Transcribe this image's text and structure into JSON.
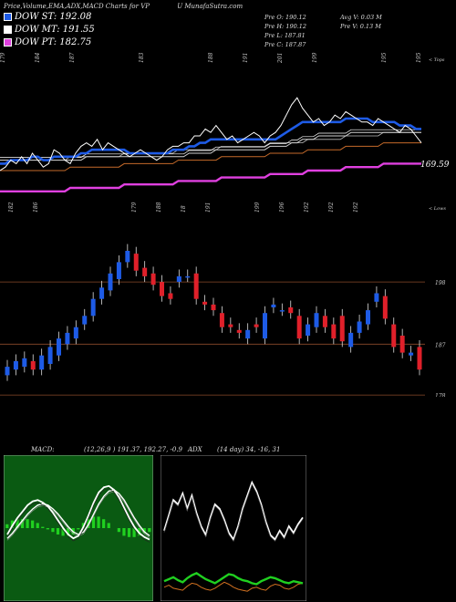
{
  "header": {
    "title": "Price,Volume,EMA,ADX,MACD Charts for VP",
    "site": "U  MunafaSutra.com"
  },
  "legend": [
    {
      "label": "DOW ST: 192.08",
      "color": "#1e5be6"
    },
    {
      "label": "DOW MT: 191.55",
      "color": "#ffffff"
    },
    {
      "label": "DOW PT: 182.75",
      "color": "#e040e0"
    }
  ],
  "stats": {
    "line1": "Pre   O: 190.12",
    "line2": "Pre   H: 190.12",
    "line3": "Pre   L: 187.81",
    "line4": "Pre   C: 187.87",
    "avg_vol": "Avg V: 0.03 M",
    "pre_vol": "Pre   V: 0.13 M"
  },
  "labels": {
    "tops": "< Tops",
    "lows": "< Lows",
    "ema_last": "169.59",
    "macd_title": "MACD:",
    "macd_values": "(12,26,9 ) 191.37,  192.27,  -0.9",
    "adx_title": "ADX",
    "adx_values": "(14  day) 34,  -16,  31"
  },
  "top_labels": [
    "179",
    "184",
    "187",
    "",
    "183",
    "",
    "188",
    "191",
    "201",
    "199",
    "",
    "195",
    "195"
  ],
  "bottom_labels": [
    "182",
    "186",
    "",
    "",
    "",
    "179",
    "188",
    "18",
    "191",
    "",
    "199",
    "196",
    "192",
    "192",
    "192"
  ],
  "colors": {
    "up": "#1e5be6",
    "down": "#e0202a",
    "ema_fast": "#1e5be6",
    "ema_pt": "#e040e0",
    "macd_bg": "#0a5a12",
    "macd_hist": "#20d020",
    "adx_plus": "#20d020",
    "adx_minus": "#d07020"
  },
  "chart_data": [
    {
      "type": "line",
      "name": "price-ema-panel",
      "series": [
        {
          "name": "Price",
          "values": [
            180,
            181,
            183,
            182,
            184,
            182,
            185,
            183,
            181,
            182,
            186,
            185,
            183,
            182,
            185,
            187,
            188,
            187,
            189,
            186,
            188,
            187,
            186,
            185,
            184,
            185,
            186,
            185,
            184,
            183,
            184,
            186,
            187,
            187,
            188,
            188,
            190,
            190,
            192,
            191,
            193,
            191,
            189,
            190,
            188,
            189,
            190,
            191,
            190,
            188,
            190,
            191,
            193,
            196,
            199,
            201,
            198,
            196,
            194,
            195,
            193,
            194,
            196,
            195,
            197,
            196,
            195,
            194,
            194,
            193,
            195,
            194,
            193,
            192,
            191,
            193,
            192,
            190,
            188
          ]
        },
        {
          "name": "DOW ST",
          "values": [
            182,
            182,
            183,
            183,
            183,
            183,
            184,
            184,
            183,
            183,
            184,
            184,
            184,
            184,
            184,
            185,
            185,
            186,
            186,
            186,
            186,
            186,
            186,
            186,
            185,
            185,
            185,
            185,
            185,
            185,
            185,
            185,
            186,
            186,
            186,
            187,
            187,
            188,
            188,
            189,
            189,
            189,
            189,
            189,
            189,
            189,
            189,
            189,
            189,
            189,
            189,
            189,
            190,
            191,
            192,
            193,
            194,
            194,
            194,
            194,
            194,
            194,
            194,
            194,
            195,
            195,
            195,
            195,
            195,
            194,
            194,
            194,
            194,
            194,
            193,
            193,
            193,
            192,
            192
          ]
        },
        {
          "name": "DOW MT",
          "values": [
            183,
            183,
            183,
            183,
            183,
            183,
            183,
            183,
            183,
            183,
            183,
            183,
            183,
            183,
            183,
            183,
            184,
            184,
            184,
            184,
            184,
            184,
            184,
            184,
            184,
            184,
            184,
            184,
            184,
            184,
            184,
            184,
            184,
            184,
            184,
            185,
            185,
            185,
            185,
            185,
            186,
            186,
            186,
            186,
            186,
            186,
            186,
            186,
            186,
            186,
            187,
            187,
            187,
            187,
            188,
            188,
            189,
            189,
            189,
            190,
            190,
            190,
            190,
            190,
            190,
            191,
            191,
            191,
            191,
            191,
            191,
            191,
            191,
            191,
            191,
            191,
            191,
            191,
            191
          ]
        },
        {
          "name": "DOW PT",
          "values": [
            174,
            174,
            174,
            174,
            174,
            174,
            174,
            174,
            174,
            174,
            174,
            174,
            174,
            175,
            175,
            175,
            175,
            175,
            175,
            175,
            175,
            175,
            175,
            176,
            176,
            176,
            176,
            176,
            176,
            176,
            176,
            176,
            176,
            177,
            177,
            177,
            177,
            177,
            177,
            177,
            177,
            178,
            178,
            178,
            178,
            178,
            178,
            178,
            178,
            178,
            179,
            179,
            179,
            179,
            179,
            179,
            179,
            180,
            180,
            180,
            180,
            180,
            180,
            180,
            181,
            181,
            181,
            181,
            181,
            181,
            181,
            182,
            182,
            182,
            182,
            182,
            182,
            182,
            182
          ]
        }
      ],
      "tick_labels_top": [
        "179",
        "184",
        "187",
        "183",
        "188",
        "191",
        "201",
        "199",
        "195",
        "195"
      ],
      "tick_labels_bottom": [
        "182",
        "186",
        "179",
        "188",
        "18",
        "191",
        "199",
        "196",
        "192",
        "192",
        "192"
      ],
      "annotations": [
        "169.59",
        "< Tops",
        "< Lows"
      ]
    },
    {
      "type": "candlestick",
      "name": "price-candles",
      "ylabels": [
        198,
        187,
        178
      ],
      "candles": [
        {
          "o": 181.5,
          "c": 183.0
        },
        {
          "o": 182.5,
          "c": 184.0
        },
        {
          "o": 183.0,
          "c": 184.5
        },
        {
          "o": 184.0,
          "c": 182.5
        },
        {
          "o": 182.5,
          "c": 185.0
        },
        {
          "o": 183.5,
          "c": 186.5
        },
        {
          "o": 185.0,
          "c": 188.0
        },
        {
          "o": 187.0,
          "c": 189.0
        },
        {
          "o": 188.0,
          "c": 190.0
        },
        {
          "o": 190.5,
          "c": 192.0
        },
        {
          "o": 192.0,
          "c": 195.0
        },
        {
          "o": 195.0,
          "c": 197.0
        },
        {
          "o": 196.5,
          "c": 199.5
        },
        {
          "o": 198.5,
          "c": 201.5
        },
        {
          "o": 201.5,
          "c": 203.5
        },
        {
          "o": 203.0,
          "c": 200.0
        },
        {
          "o": 200.5,
          "c": 199.0
        },
        {
          "o": 199.5,
          "c": 197.5
        },
        {
          "o": 198.0,
          "c": 195.5
        },
        {
          "o": 196.0,
          "c": 195.0
        },
        {
          "o": 198.0,
          "c": 199.0
        },
        {
          "o": 199.0,
          "c": 199.0
        },
        {
          "o": 199.5,
          "c": 195.0
        },
        {
          "o": 194.5,
          "c": 194.0
        },
        {
          "o": 194.0,
          "c": 193.0
        },
        {
          "o": 192.5,
          "c": 190.0
        },
        {
          "o": 190.5,
          "c": 190.0
        },
        {
          "o": 189.5,
          "c": 189.0
        },
        {
          "o": 188.0,
          "c": 189.5
        },
        {
          "o": 190.5,
          "c": 190.0
        },
        {
          "o": 188.0,
          "c": 192.5
        },
        {
          "o": 193.5,
          "c": 194.0
        },
        {
          "o": 193.0,
          "c": 193.0
        },
        {
          "o": 193.5,
          "c": 192.5
        },
        {
          "o": 192.0,
          "c": 188.0
        },
        {
          "o": 188.5,
          "c": 190.5
        },
        {
          "o": 190.0,
          "c": 192.5
        },
        {
          "o": 192.0,
          "c": 190.0
        },
        {
          "o": 190.5,
          "c": 188.0
        },
        {
          "o": 192.0,
          "c": 187.5
        },
        {
          "o": 186.5,
          "c": 189.0
        },
        {
          "o": 189.0,
          "c": 191.0
        },
        {
          "o": 190.5,
          "c": 193.0
        },
        {
          "o": 194.5,
          "c": 196.0
        },
        {
          "o": 195.5,
          "c": 191.5
        },
        {
          "o": 190.5,
          "c": 186.5
        },
        {
          "o": 188.5,
          "c": 185.5
        },
        {
          "o": 185.0,
          "c": 185.5
        },
        {
          "o": 186.5,
          "c": 182.5
        }
      ]
    },
    {
      "type": "area",
      "name": "macd-panel",
      "series": [
        {
          "name": "MACD",
          "values": [
            -0.5,
            0.2,
            0.8,
            1.3,
            1.8,
            2.1,
            2.2,
            2.0,
            1.7,
            1.2,
            0.6,
            0.0,
            -0.5,
            -0.8,
            -0.6,
            0.1,
            1.0,
            2.0,
            2.8,
            3.2,
            3.3,
            3.0,
            2.4,
            1.6,
            0.8,
            0.1,
            -0.4,
            -0.7,
            -0.9
          ]
        },
        {
          "name": "Signal",
          "values": [
            -0.8,
            -0.4,
            0.1,
            0.6,
            1.1,
            1.5,
            1.8,
            1.9,
            1.8,
            1.5,
            1.1,
            0.6,
            0.1,
            -0.3,
            -0.5,
            -0.3,
            0.3,
            1.1,
            1.9,
            2.5,
            2.9,
            3.0,
            2.7,
            2.2,
            1.5,
            0.8,
            0.2,
            -0.3,
            -0.6
          ]
        },
        {
          "name": "Histogram",
          "values": [
            0.3,
            0.6,
            0.7,
            0.7,
            0.7,
            0.6,
            0.4,
            0.1,
            -0.1,
            -0.3,
            -0.5,
            -0.6,
            -0.6,
            -0.5,
            -0.1,
            0.4,
            0.7,
            0.9,
            0.9,
            0.7,
            0.4,
            0.0,
            -0.3,
            -0.6,
            -0.7,
            -0.7,
            -0.6,
            -0.4,
            -0.3
          ]
        }
      ]
    },
    {
      "type": "line",
      "name": "adx-panel",
      "series": [
        {
          "name": "ADX",
          "values": [
            28,
            35,
            42,
            40,
            45,
            38,
            44,
            36,
            30,
            26,
            34,
            40,
            38,
            33,
            27,
            24,
            30,
            38,
            44,
            50,
            46,
            40,
            32,
            26,
            24,
            28,
            25,
            30,
            27,
            31,
            34
          ]
        },
        {
          "name": "+DI",
          "values": [
            12,
            14,
            11,
            10,
            9,
            13,
            16,
            15,
            12,
            10,
            9,
            11,
            14,
            17,
            15,
            12,
            10,
            9,
            8,
            11,
            12,
            10,
            9,
            13,
            15,
            14,
            11,
            10,
            12,
            15,
            16
          ]
        },
        {
          "name": "-DI",
          "values": [
            18,
            20,
            22,
            19,
            17,
            21,
            24,
            26,
            23,
            20,
            18,
            16,
            19,
            22,
            25,
            24,
            21,
            19,
            18,
            16,
            15,
            18,
            20,
            22,
            21,
            19,
            17,
            16,
            18,
            17,
            16
          ]
        }
      ]
    }
  ]
}
